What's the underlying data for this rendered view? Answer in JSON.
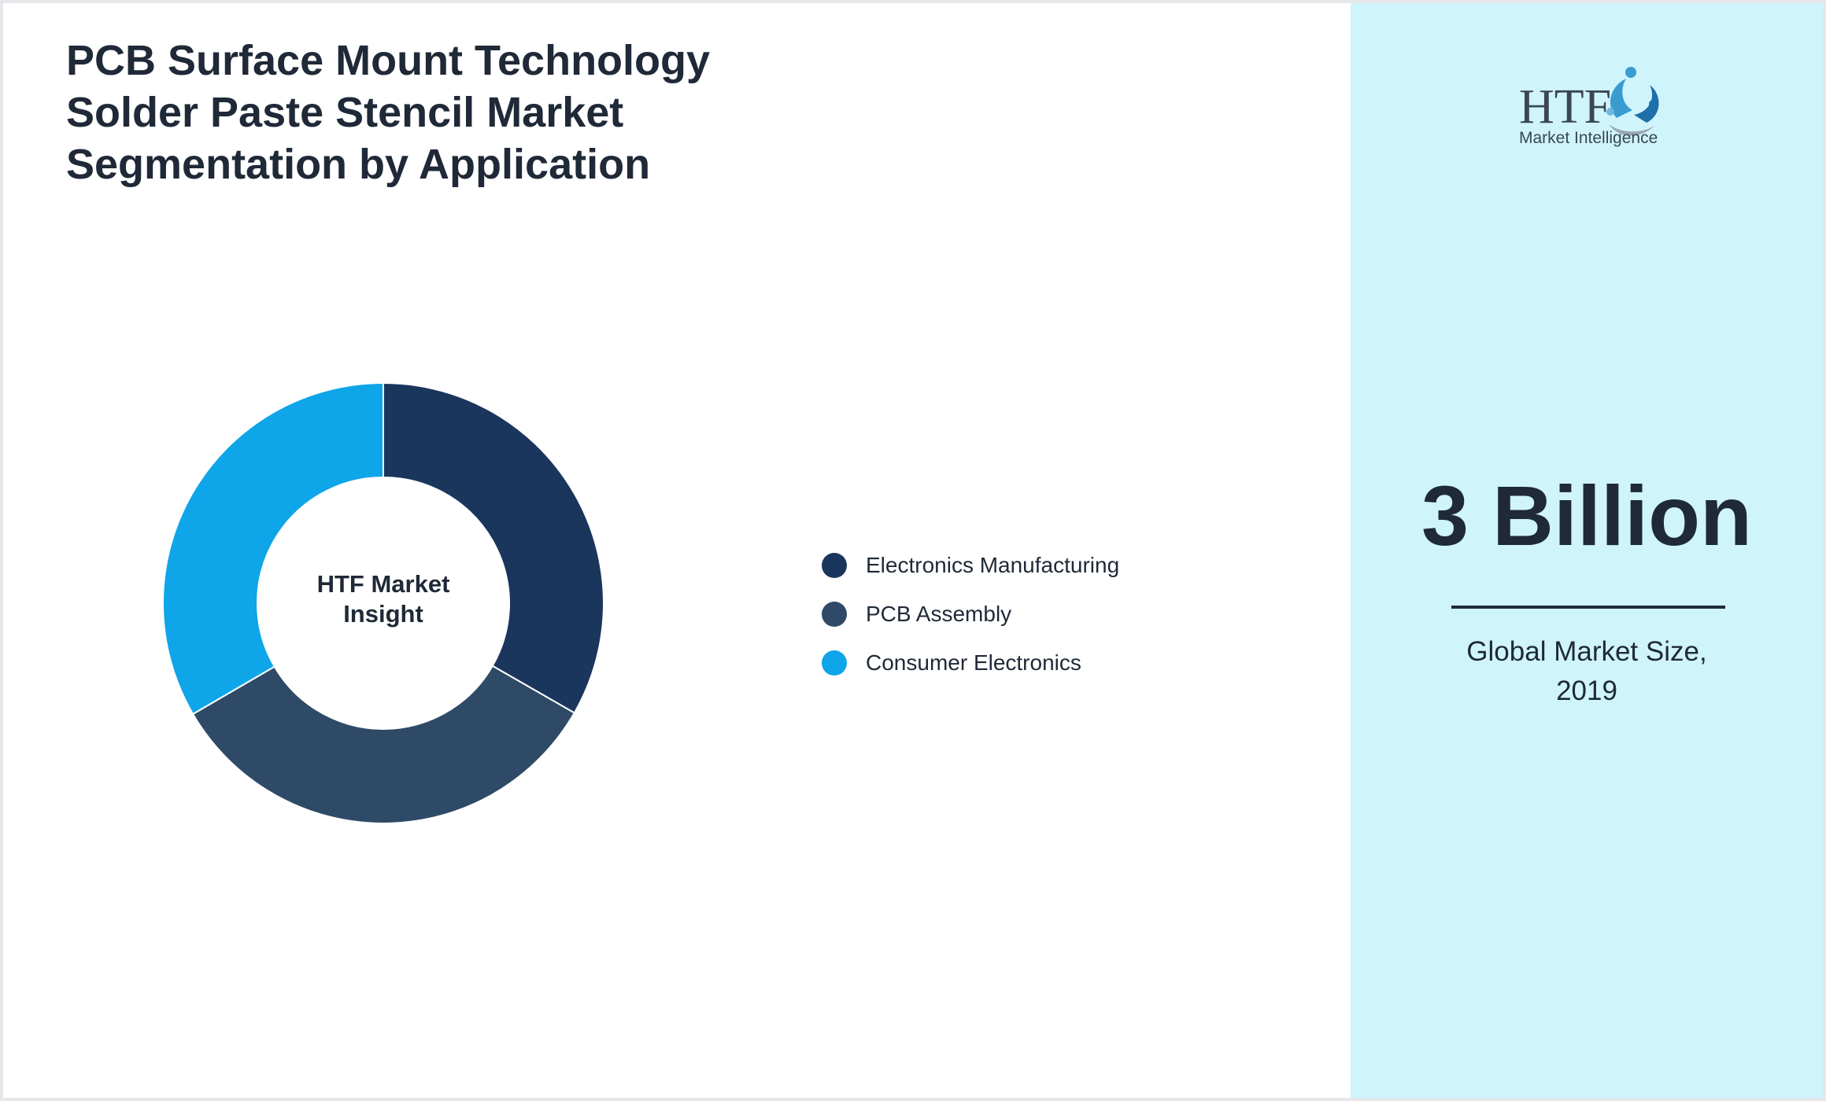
{
  "title_lines": [
    "PCB Surface Mount Technology",
    "Solder Paste Stencil Market",
    "Segmentation by Application"
  ],
  "center_label_lines": [
    "HTF Market",
    "Insight"
  ],
  "logo": {
    "text_main": "HTF",
    "text_sub": "Market Intelligence"
  },
  "stat": {
    "value": "3 Billion",
    "caption_lines": [
      "Global Market Size,",
      "2019"
    ]
  },
  "colors": {
    "background": "#ffffff",
    "side_panel": "#cff4fc",
    "text": "#1f2937"
  },
  "chart_data": {
    "type": "pie",
    "donut": true,
    "categories": [
      "Electronics Manufacturing",
      "PCB Assembly",
      "Consumer Electronics"
    ],
    "values": [
      33.3,
      33.3,
      33.4
    ],
    "colors": [
      "#1b365d",
      "#2e4a66",
      "#0ea5e9"
    ],
    "legend": {
      "position": "right"
    }
  }
}
